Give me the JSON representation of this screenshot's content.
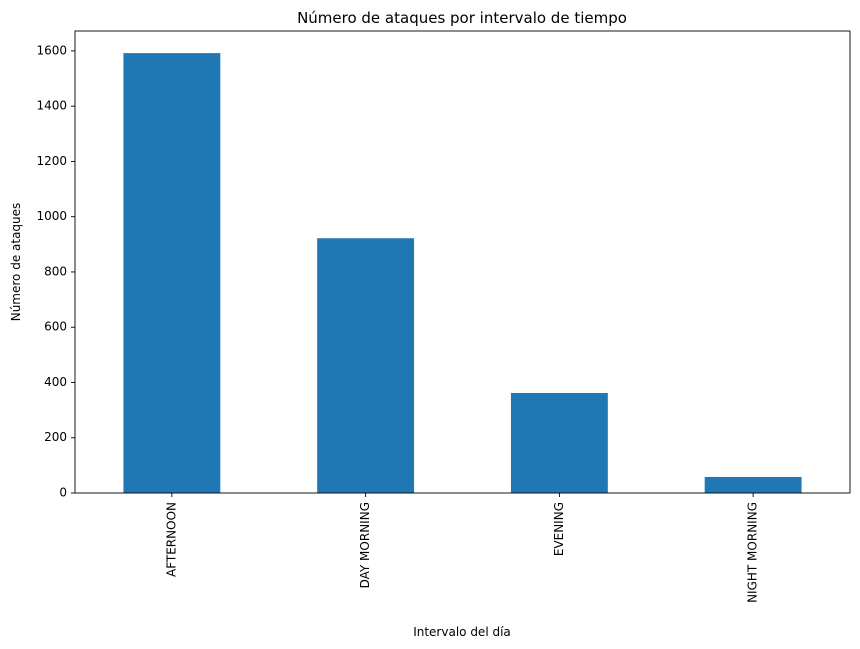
{
  "chart_data": {
    "type": "bar",
    "title": "Número de ataques por intervalo de tiempo",
    "xlabel": "Intervalo del día",
    "ylabel": "Número de ataques",
    "categories": [
      "AFTERNOON",
      "DAY MORNING",
      "EVENING",
      "NIGHT MORNING"
    ],
    "values": [
      1592,
      922,
      362,
      58
    ],
    "ylim": [
      0,
      1672
    ],
    "yticks": [
      0,
      200,
      400,
      600,
      800,
      1000,
      1200,
      1400,
      1600
    ],
    "grid": false,
    "legend": "none",
    "bar_color": "#1f77b4"
  }
}
